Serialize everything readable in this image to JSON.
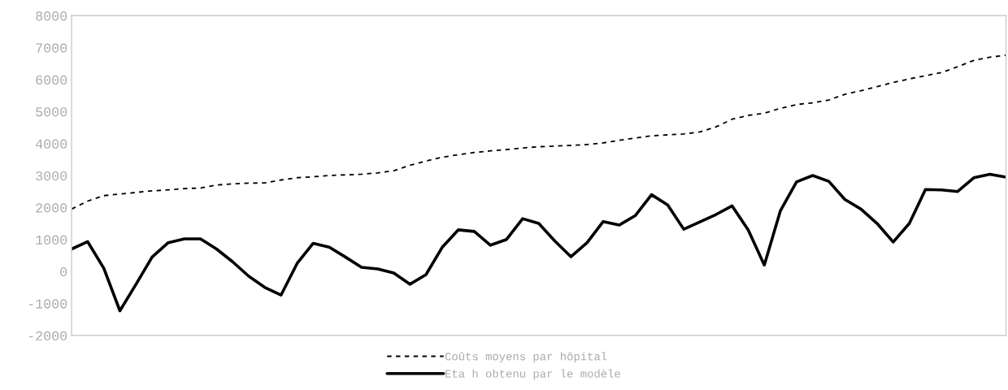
{
  "chart_data": {
    "type": "line",
    "categories": [
      null,
      null,
      null,
      null,
      null,
      null,
      null,
      null,
      null,
      null,
      null,
      null,
      null,
      null,
      null,
      null,
      null,
      null,
      null,
      null,
      null,
      null,
      null,
      null,
      null,
      null,
      null,
      null,
      null,
      null,
      null,
      null,
      null,
      null,
      null,
      null,
      null,
      null,
      null,
      null,
      null,
      null,
      null,
      null,
      null,
      null,
      null,
      null,
      null,
      null,
      null,
      null,
      null,
      null,
      null,
      null,
      null,
      null,
      null
    ],
    "series": [
      {
        "name": "Coûts moyens par hôpital",
        "color": "#000000",
        "line_style": "dashed",
        "values": [
          1950,
          2200,
          2370,
          2420,
          2470,
          2520,
          2550,
          2590,
          2610,
          2700,
          2740,
          2760,
          2770,
          2860,
          2930,
          2960,
          3000,
          3020,
          3040,
          3080,
          3150,
          3320,
          3450,
          3570,
          3650,
          3720,
          3770,
          3810,
          3860,
          3900,
          3920,
          3940,
          3970,
          4020,
          4100,
          4170,
          4240,
          4270,
          4300,
          4360,
          4520,
          4760,
          4880,
          4950,
          5100,
          5220,
          5270,
          5360,
          5540,
          5650,
          5780,
          5910,
          6020,
          6120,
          6220,
          6400,
          6600,
          6700,
          6760
        ]
      },
      {
        "name": "Eta h obtenu par le modèle",
        "color": "#000000",
        "line_style": "solid",
        "values": [
          700,
          930,
          100,
          -1230,
          -400,
          450,
          900,
          1020,
          1020,
          700,
          300,
          -150,
          -500,
          -740,
          250,
          880,
          760,
          450,
          130,
          80,
          -50,
          -400,
          -100,
          750,
          1300,
          1250,
          820,
          1000,
          1650,
          1500,
          950,
          460,
          900,
          1560,
          1450,
          1750,
          2400,
          2080,
          1320,
          1550,
          1780,
          2050,
          1300,
          200,
          1900,
          2800,
          3000,
          2820,
          2250,
          1950,
          1500,
          920,
          1500,
          2560,
          2550,
          2500,
          2930,
          3040,
          2950
        ]
      }
    ],
    "ylim": [
      -2000,
      8000
    ],
    "yticks": [
      -2000,
      -1000,
      0,
      1000,
      2000,
      3000,
      4000,
      5000,
      6000,
      7000,
      8000
    ],
    "grid": false,
    "legend": "bottom",
    "tick_labels": "y"
  }
}
